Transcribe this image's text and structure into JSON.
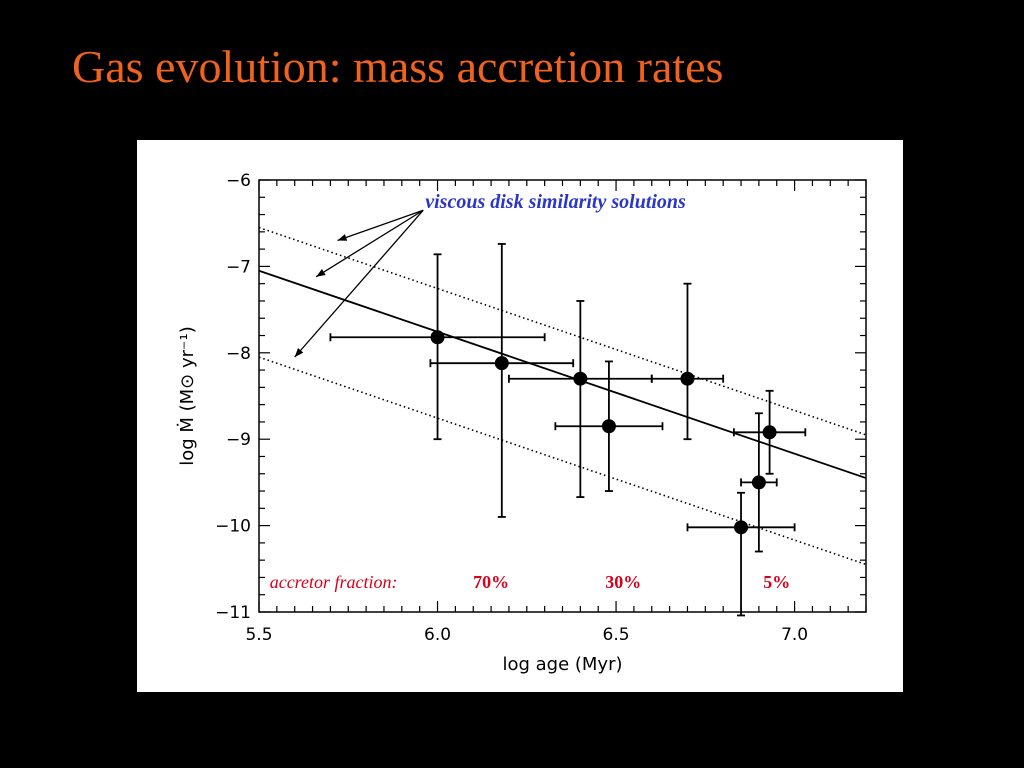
{
  "slide": {
    "title": "Gas evolution: mass accretion rates"
  },
  "colors": {
    "background": "#000000",
    "title": "#f0631c",
    "annotation_blue": "#2b36c8",
    "annotation_red": "#d9001b",
    "panel": "#ffffff"
  },
  "chart_data": {
    "type": "scatter",
    "xlabel": "log age (Myr)",
    "ylabel": "log Ṁ (M⊙ yr⁻¹)",
    "xlim": [
      5.5,
      7.2
    ],
    "ylim": [
      -11,
      -6
    ],
    "x_ticks": [
      5.5,
      6.0,
      6.5,
      7.0
    ],
    "x_tick_labels": [
      "5.5",
      "6.0",
      "6.5",
      "7.0"
    ],
    "y_ticks": [
      -6,
      -7,
      -8,
      -9,
      -10,
      -11
    ],
    "y_tick_labels": [
      "−6",
      "−7",
      "−8",
      "−9",
      "−10",
      "−11"
    ],
    "grid": false,
    "points": [
      {
        "x": 6.0,
        "y": -7.82,
        "xerr": [
          0.3,
          0.3
        ],
        "yerr": [
          0.96,
          1.18
        ]
      },
      {
        "x": 6.18,
        "y": -8.12,
        "xerr": [
          0.2,
          0.2
        ],
        "yerr": [
          1.38,
          1.78
        ]
      },
      {
        "x": 6.4,
        "y": -8.3,
        "xerr": [
          0.2,
          0.2
        ],
        "yerr": [
          0.9,
          1.37
        ]
      },
      {
        "x": 6.48,
        "y": -8.85,
        "xerr": [
          0.15,
          0.15
        ],
        "yerr": [
          0.75,
          0.75
        ]
      },
      {
        "x": 6.7,
        "y": -8.3,
        "xerr": [
          0.1,
          0.1
        ],
        "yerr": [
          1.1,
          0.7
        ]
      },
      {
        "x": 6.85,
        "y": -10.02,
        "xerr": [
          0.15,
          0.15
        ],
        "yerr": [
          0.4,
          1.02
        ]
      },
      {
        "x": 6.9,
        "y": -9.5,
        "xerr": [
          0.05,
          0.05
        ],
        "yerr": [
          0.8,
          0.8
        ]
      },
      {
        "x": 6.93,
        "y": -8.92,
        "xerr": [
          0.1,
          0.1
        ],
        "yerr": [
          0.48,
          0.48
        ]
      }
    ],
    "lines": [
      {
        "style": "solid",
        "x": [
          5.5,
          7.2
        ],
        "y": [
          -7.05,
          -9.45
        ]
      },
      {
        "style": "dotted",
        "x": [
          5.5,
          7.2
        ],
        "y": [
          -6.55,
          -8.95
        ]
      },
      {
        "style": "dotted",
        "x": [
          5.5,
          7.2
        ],
        "y": [
          -8.05,
          -10.45
        ]
      }
    ],
    "annotations": {
      "similarity_label": "viscous disk similarity solutions",
      "arrow_origin": {
        "x": 5.96,
        "y": -6.35
      },
      "arrow_targets": [
        {
          "x": 5.72,
          "y": -6.7
        },
        {
          "x": 5.66,
          "y": -7.12
        },
        {
          "x": 5.6,
          "y": -8.05
        }
      ],
      "fraction_label": "accretor fraction:",
      "fraction_label_x": 5.53,
      "fractions": [
        {
          "x": 6.15,
          "label": "70%"
        },
        {
          "x": 6.52,
          "label": "30%"
        },
        {
          "x": 6.95,
          "label": "5%"
        }
      ],
      "fraction_y": -10.72
    }
  }
}
